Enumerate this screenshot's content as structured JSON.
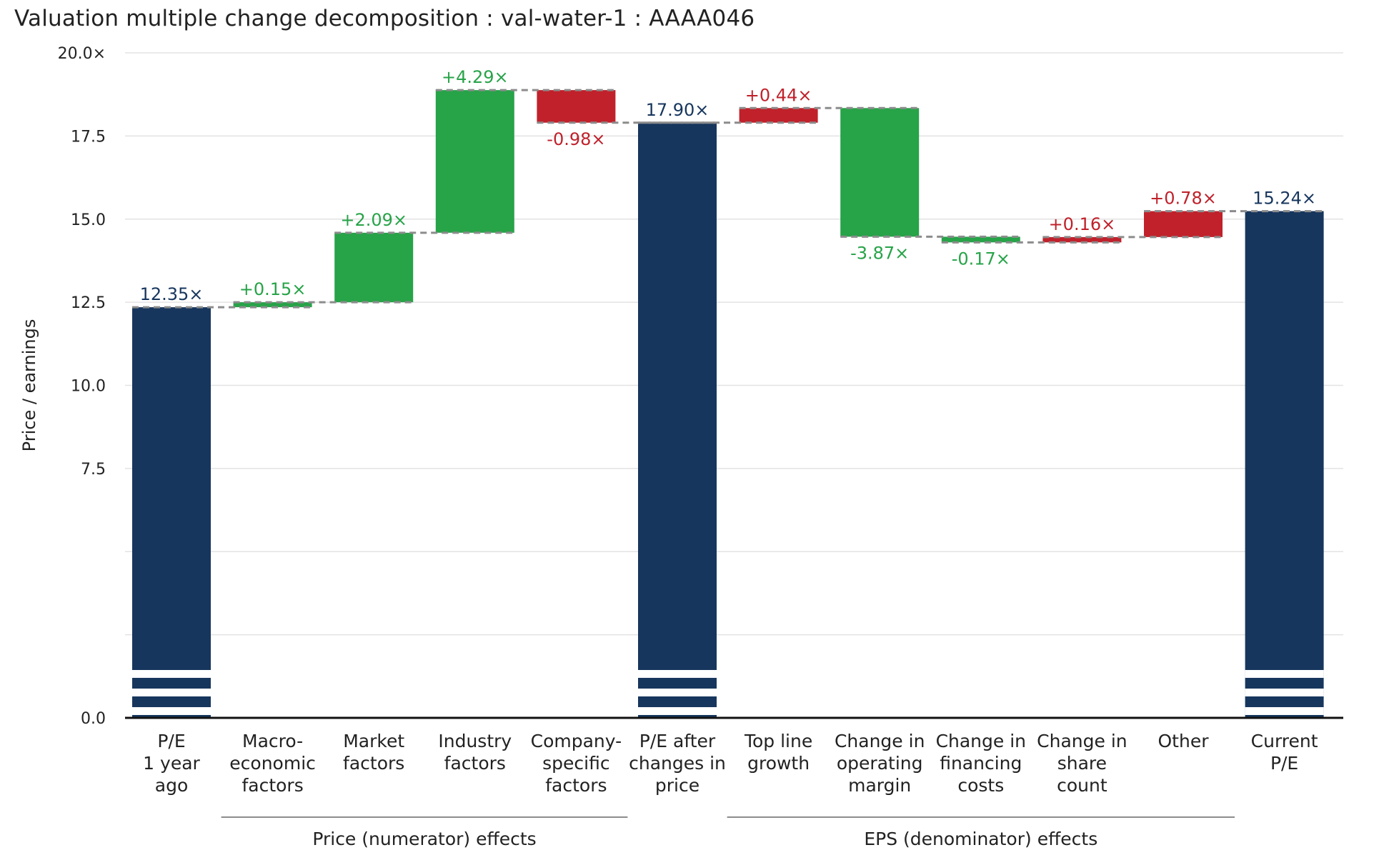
{
  "title": "Valuation multiple change decomposition : val-water-1 : AAAA046",
  "colors": {
    "total": "#17365d",
    "increase": "#27a348",
    "decrease": "#c0212b",
    "total_label": "#17365d",
    "increase_label": "#27a348",
    "decrease_label": "#c0212b",
    "connector": "#8c8c8c",
    "grid": "#e3e3e3",
    "axis": "#111111",
    "group_rule": "#8c8c8c"
  },
  "chart_data": {
    "type": "bar",
    "subtype": "waterfall",
    "ylabel": "Price / earnings",
    "xlabel": "",
    "ylim": [
      0,
      20
    ],
    "yticks": [
      0,
      2.5,
      5,
      7.5,
      10,
      12.5,
      15,
      17.5,
      20
    ],
    "ytick_labels": [
      "0.0",
      "",
      "",
      "7.5",
      "10.0",
      "12.5",
      "15.0",
      "17.5",
      "20.0×"
    ],
    "grid": true,
    "axis_break": "striped base on total bars",
    "bars": [
      {
        "category": "P/E\n1 year\nago",
        "kind": "total",
        "start": 0,
        "end": 12.35,
        "label": "12.35×",
        "label_pos": "above"
      },
      {
        "category": "Macro-\neconomic\nfactors",
        "kind": "increase",
        "start": 12.35,
        "end": 12.5,
        "label": "+0.15×",
        "label_pos": "above"
      },
      {
        "category": "Market\nfactors",
        "kind": "increase",
        "start": 12.5,
        "end": 14.59,
        "label": "+2.09×",
        "label_pos": "above"
      },
      {
        "category": "Industry\nfactors",
        "kind": "increase",
        "start": 14.59,
        "end": 18.88,
        "label": "+4.29×",
        "label_pos": "above"
      },
      {
        "category": "Company-\nspecific\nfactors",
        "kind": "decrease",
        "start": 18.88,
        "end": 17.9,
        "label": "-0.98×",
        "label_pos": "below"
      },
      {
        "category": "P/E after\nchanges in\nprice",
        "kind": "total",
        "start": 0,
        "end": 17.9,
        "label": "17.90×",
        "label_pos": "above"
      },
      {
        "category": "Top line\ngrowth",
        "kind": "decrease",
        "start": 17.9,
        "end": 18.34,
        "label": "+0.44×",
        "label_pos": "above"
      },
      {
        "category": "Change in\noperating\nmargin",
        "kind": "increase",
        "start": 18.34,
        "end": 14.47,
        "label": "-3.87×",
        "label_pos": "below"
      },
      {
        "category": "Change in\nfinancing\ncosts",
        "kind": "increase",
        "start": 14.47,
        "end": 14.3,
        "label": "-0.17×",
        "label_pos": "below"
      },
      {
        "category": "Change in\nshare\ncount",
        "kind": "decrease",
        "start": 14.3,
        "end": 14.46,
        "label": "+0.16×",
        "label_pos": "above"
      },
      {
        "category": "Other",
        "kind": "decrease",
        "start": 14.46,
        "end": 15.24,
        "label": "+0.78×",
        "label_pos": "above"
      },
      {
        "category": "Current\nP/E",
        "kind": "total",
        "start": 0,
        "end": 15.24,
        "label": "15.24×",
        "label_pos": "above"
      }
    ],
    "groups": [
      {
        "label": "Price (numerator) effects",
        "from_index": 1,
        "to_index": 4
      },
      {
        "label": "EPS (denominator) effects",
        "from_index": 6,
        "to_index": 10
      }
    ]
  }
}
